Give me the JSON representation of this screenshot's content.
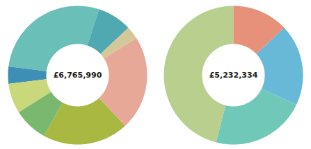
{
  "chart_data": [
    {
      "type": "donut",
      "annotation": "£6,765,990",
      "values": [
        0.28,
        0.04,
        0.07,
        0.08,
        0.2,
        0.22,
        0.03,
        0.08
      ],
      "colors": [
        "#6abfb8",
        "#3d8fb5",
        "#c8d87a",
        "#7ab870",
        "#a8b840",
        "#e8a898",
        "#d4c898",
        "#50a8b0"
      ]
    },
    {
      "type": "donut",
      "annotation": "£5,232,334",
      "values": [
        0.46,
        0.22,
        0.19,
        0.13
      ],
      "colors": [
        "#b8cf8e",
        "#70c8b8",
        "#68b8d8",
        "#e8917a"
      ]
    }
  ]
}
